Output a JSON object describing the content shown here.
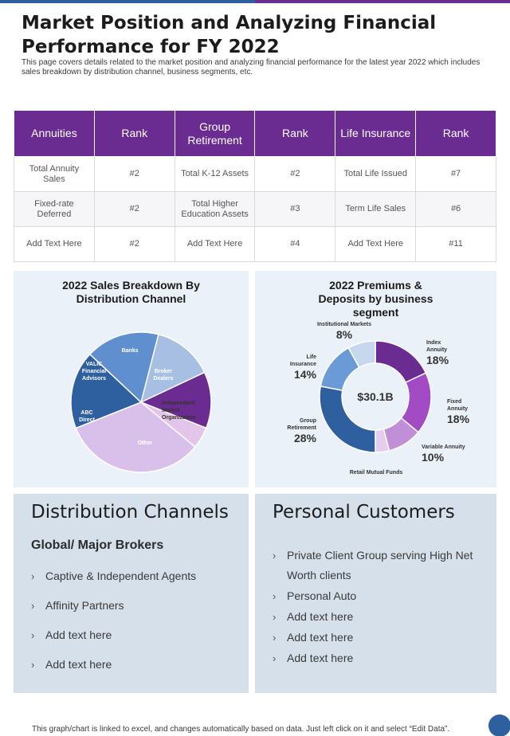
{
  "page": {
    "title": "Market Position and Analyzing Financial Performance for FY 2022",
    "subtitle": "This page covers details related to the market position and analyzing financial performance for the latest year 2022 which includes sales breakdown by distribution channel, business segments, etc.",
    "footer": "This graph/chart is linked to excel, and changes automatically based on data. Just left click on it and select “Edit Data”."
  },
  "table": {
    "headers": [
      "Annuities",
      "Rank",
      "Group Retirement",
      "Rank",
      "Life Insurance",
      "Rank"
    ],
    "rows": [
      [
        "Total Annuity Sales",
        "#2",
        "Total K-12 Assets",
        "#2",
        "Total Life Issued",
        "#7"
      ],
      [
        "Fixed-rate Deferred",
        "#2",
        "Total Higher Education Assets",
        "#3",
        "Term Life Sales",
        "#6"
      ],
      [
        "Add Text Here",
        "#2",
        "Add Text Here",
        "#4",
        "Add Text Here",
        "#11"
      ]
    ]
  },
  "charts": {
    "pie_title": "2022 Sales Breakdown By Distribution Channel",
    "donut_title": "2022 Premiums & Deposits by business segment",
    "donut_center": "$30.1B"
  },
  "colors": {
    "purple": "#6b2c91",
    "blue": "#2e5f9e",
    "panel": "#eaf1f8",
    "box": "#d6e0ea"
  },
  "chart_data": [
    {
      "type": "pie",
      "title": "2022 Sales Breakdown By Distribution Channel",
      "categories": [
        "Banks",
        "Broker Dealers",
        "Independent Market Organization",
        "Other",
        "ABC Direct",
        "VALIC Financial Advisors"
      ],
      "values": [
        14,
        13,
        5,
        33,
        18,
        17
      ],
      "colors": [
        "#a6bfe3",
        "#6b2c91",
        "#e3c5ea",
        "#d8c0ea",
        "#2e5f9e",
        "#5f8fce"
      ]
    },
    {
      "type": "pie",
      "title": "2022 Premiums & Deposits by business segment",
      "categories": [
        "Index Annuity",
        "Fixed Annuity",
        "Variable Annuity",
        "Retail Mutual Funds",
        "Group Retirement",
        "Life Insurance",
        "Institutional Markets"
      ],
      "values": [
        18,
        18,
        10,
        4,
        28,
        14,
        8
      ],
      "labels": [
        "18%",
        "18%",
        "10%",
        "",
        "28%",
        "14%",
        "8%"
      ],
      "colors": [
        "#6b2c91",
        "#a24bc4",
        "#c08fd8",
        "#e5cdef",
        "#2e5f9e",
        "#6b9bd6",
        "#c7d8ee"
      ]
    }
  ],
  "distribution": {
    "title": "Distribution Channels",
    "subtitle": "Global/ Major Brokers",
    "items": [
      "Captive & Independent Agents",
      "Affinity Partners",
      "Add text here",
      "Add text here"
    ]
  },
  "personal": {
    "title": "Personal Customers",
    "items": [
      "Private Client Group serving High Net Worth clients",
      "Personal Auto",
      "Add text here",
      "Add text here",
      "Add text here"
    ]
  }
}
